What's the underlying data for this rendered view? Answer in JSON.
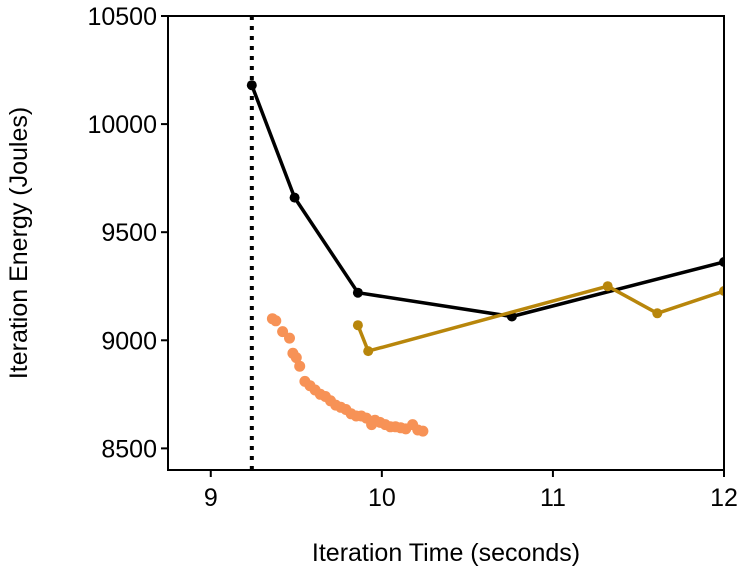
{
  "chart_data": {
    "type": "line",
    "title": "",
    "xlabel": "Iteration Time (seconds)",
    "ylabel": "Iteration Energy (Joules)",
    "xlim": [
      8.75,
      12
    ],
    "ylim": [
      8400,
      10500
    ],
    "xticks": [
      9,
      10,
      11,
      12
    ],
    "yticks": [
      8500,
      9000,
      9500,
      10000,
      10500
    ],
    "xtick_labels": [
      "9",
      "10",
      "11",
      "12"
    ],
    "ytick_labels": [
      "8500",
      "9000",
      "9500",
      "10000",
      "10500"
    ],
    "grid": false,
    "reference_line": {
      "orientation": "vertical",
      "x": 9.24,
      "style": "dotted",
      "color": "#000000"
    },
    "series": [
      {
        "name": "black",
        "color": "#000000",
        "line": true,
        "x": [
          9.24,
          9.49,
          9.86,
          10.76,
          12.0
        ],
        "y": [
          10180,
          9660,
          9220,
          9110,
          9362
        ]
      },
      {
        "name": "gold",
        "color": "#b8860b",
        "line": true,
        "x": [
          9.86,
          9.92,
          11.32,
          11.61,
          12.0
        ],
        "y": [
          9070,
          8950,
          9250,
          9125,
          9228
        ]
      },
      {
        "name": "orange",
        "color": "#f79256",
        "line": false,
        "x": [
          9.36,
          9.38,
          9.42,
          9.46,
          9.48,
          9.5,
          9.52,
          9.55,
          9.58,
          9.61,
          9.64,
          9.67,
          9.7,
          9.73,
          9.76,
          9.79,
          9.82,
          9.85,
          9.88,
          9.91,
          9.94,
          9.96,
          9.99,
          10.02,
          10.05,
          10.08,
          10.11,
          10.14,
          10.18,
          10.21,
          10.24
        ],
        "y": [
          9100,
          9090,
          9040,
          9010,
          8940,
          8920,
          8880,
          8810,
          8790,
          8770,
          8750,
          8740,
          8720,
          8700,
          8690,
          8680,
          8660,
          8650,
          8650,
          8640,
          8610,
          8630,
          8620,
          8610,
          8600,
          8600,
          8595,
          8590,
          8610,
          8585,
          8580
        ]
      }
    ]
  }
}
